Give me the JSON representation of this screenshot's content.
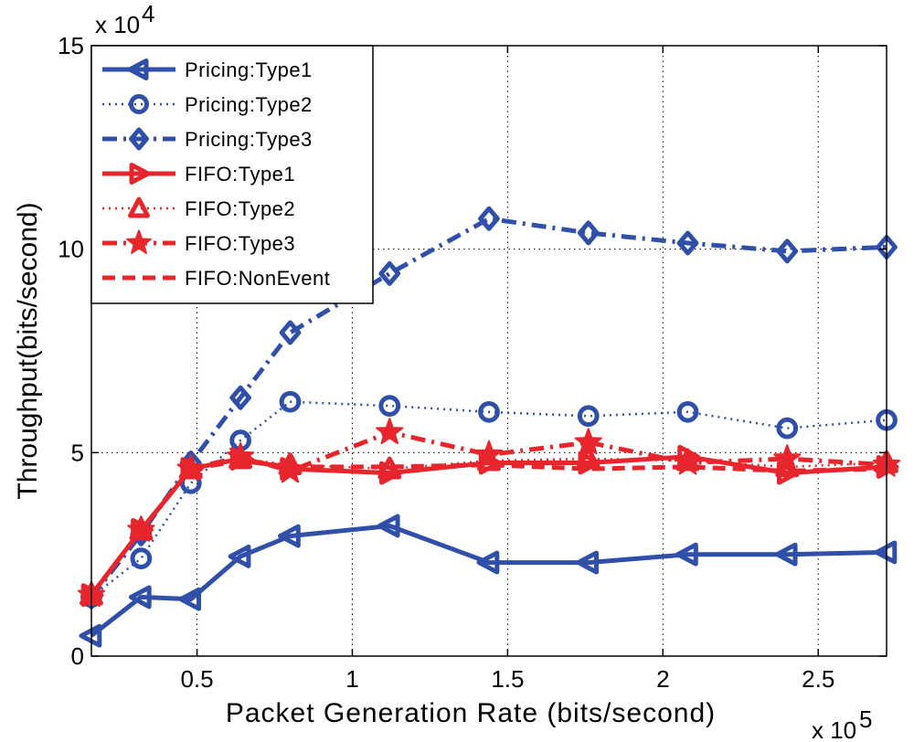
{
  "chart_data": {
    "type": "line",
    "xlabel": "Packet Generation Rate (bits/second)",
    "ylabel": "Throughput(bits/second)",
    "x_exponent_label": "x 10",
    "x_exponent_power": "5",
    "y_exponent_label": "x 10",
    "y_exponent_power": "4",
    "xlim": [
      16000,
      272000
    ],
    "ylim": [
      0,
      150000
    ],
    "x_ticks": [
      50000,
      100000,
      150000,
      200000,
      250000
    ],
    "x_tick_labels": [
      "0.5",
      "1",
      "1.5",
      "2",
      "2.5"
    ],
    "y_ticks": [
      0,
      50000,
      100000,
      150000
    ],
    "y_tick_labels": [
      "0",
      "5",
      "10",
      "15"
    ],
    "grid": true,
    "legend_position": "top-left",
    "x": [
      16000,
      32000,
      48000,
      64000,
      80000,
      112000,
      144000,
      176000,
      208000,
      240000,
      272000
    ],
    "series": [
      {
        "name": "Pricing:Type1",
        "color": "#2f4fa8",
        "dash": "solid",
        "marker": "triangle-left",
        "values": [
          5000,
          14500,
          14000,
          24500,
          29500,
          32000,
          23000,
          23000,
          25000,
          25000,
          25500
        ]
      },
      {
        "name": "Pricing:Type2",
        "color": "#2f4fa8",
        "dash": "dotted",
        "marker": "circle",
        "values": [
          14500,
          24000,
          42500,
          53000,
          62500,
          61500,
          60000,
          59000,
          60000,
          56000,
          58000
        ]
      },
      {
        "name": "Pricing:Type3",
        "color": "#2f4fa8",
        "dash": "dashdot",
        "marker": "diamond",
        "values": [
          14500,
          30000,
          47500,
          63500,
          79500,
          94000,
          107500,
          104000,
          101500,
          99500,
          100500
        ]
      },
      {
        "name": "FIFO:Type1",
        "color": "#e6262c",
        "dash": "solid",
        "marker": "triangle-right",
        "values": [
          15000,
          31000,
          46000,
          48500,
          46000,
          45000,
          47500,
          47500,
          49000,
          45000,
          46500
        ]
      },
      {
        "name": "FIFO:Type2",
        "color": "#e6262c",
        "dash": "dotted",
        "marker": "triangle-up",
        "values": [
          15000,
          31000,
          46000,
          48500,
          47000,
          46000,
          48000,
          48500,
          48000,
          46500,
          47500
        ]
      },
      {
        "name": "FIFO:Type3",
        "color": "#e6262c",
        "dash": "dashdot",
        "marker": "star",
        "values": [
          15000,
          31000,
          46000,
          49000,
          45500,
          55000,
          49500,
          52500,
          47500,
          48500,
          47000
        ]
      },
      {
        "name": "FIFO:NonEvent",
        "color": "#e6262c",
        "dash": "dashed",
        "marker": "none",
        "values": [
          15000,
          31000,
          46000,
          48000,
          46500,
          46500,
          47000,
          46000,
          46500,
          45500,
          46000
        ]
      }
    ]
  }
}
